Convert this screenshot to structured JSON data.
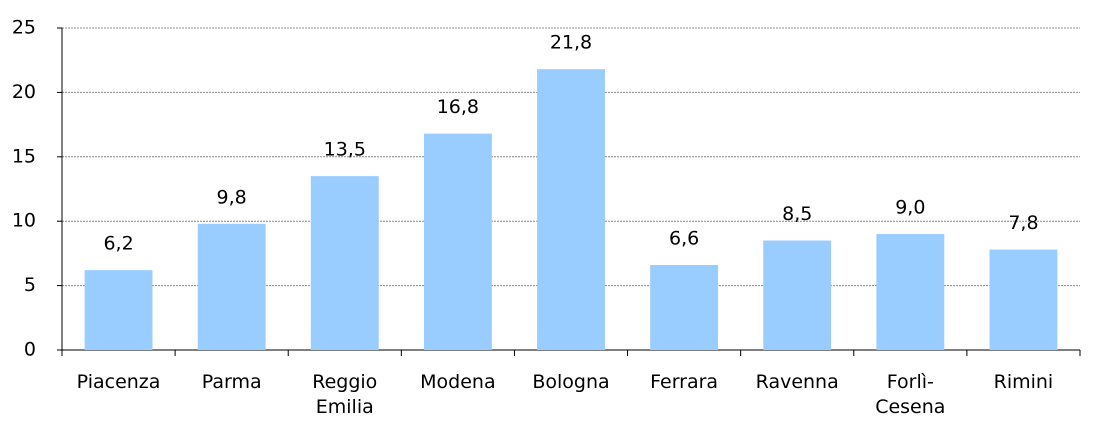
{
  "chart_data": {
    "type": "bar",
    "categories": [
      "Piacenza",
      "Parma",
      "Reggio Emilia",
      "Modena",
      "Bologna",
      "Ferrara",
      "Ravenna",
      "Forlì-Cesena",
      "Rimini"
    ],
    "values": [
      6.2,
      9.8,
      13.5,
      16.8,
      21.8,
      6.6,
      8.5,
      9.0,
      7.8
    ],
    "value_labels": [
      "6,2",
      "9,8",
      "13,5",
      "16,8",
      "21,8",
      "6,6",
      "8,5",
      "9,0",
      "7,8"
    ],
    "color": "#99ccff",
    "ylim": [
      0,
      25
    ],
    "yticks": [
      0,
      5,
      10,
      15,
      20,
      25
    ],
    "grid": true
  }
}
